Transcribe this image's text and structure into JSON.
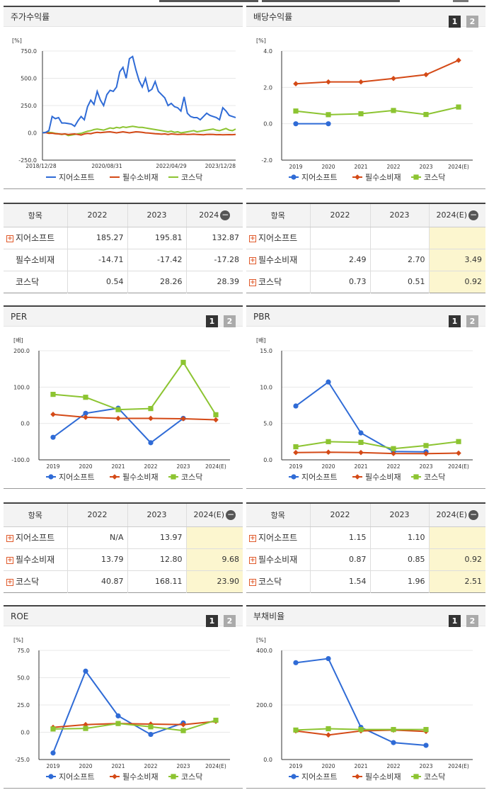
{
  "colors": {
    "s1": "#2f6bd6",
    "s2": "#d44a17",
    "s3": "#8cc431",
    "grid": "#e8e8e8",
    "highlight": "#fcf6cf"
  },
  "series_names": [
    "지어소프트",
    "필수소비재",
    "코스닥"
  ],
  "pager": {
    "one": "1",
    "two": "2"
  },
  "icons": {
    "expand": "plus-icon",
    "collapse": "minus-icon"
  },
  "charts": {
    "stock": {
      "title": "주가수익률",
      "unit": "[%]",
      "chart_data": {
        "type": "line",
        "yticks": [
          "750.0",
          "500.0",
          "250.0",
          "0.0",
          "-250.0"
        ],
        "ylim": [
          -250,
          750
        ],
        "xticks": [
          "2018/12/28",
          "2020/08/31",
          "2022/04/29",
          "2023/12/28"
        ],
        "xlim": [
          0,
          60
        ],
        "xtick_positions": [
          0,
          20,
          40,
          60
        ],
        "series": [
          {
            "name": "지어소프트",
            "values": [
              0,
              5,
              20,
              150,
              130,
              140,
              90,
              90,
              85,
              80,
              60,
              110,
              150,
              120,
              240,
              300,
              260,
              380,
              300,
              250,
              350,
              390,
              380,
              420,
              560,
              600,
              500,
              680,
              700,
              580,
              480,
              420,
              500,
              380,
              400,
              470,
              380,
              350,
              320,
              250,
              270,
              240,
              230,
              200,
              330,
              180,
              150,
              140,
              140,
              120,
              150,
              180,
              160,
              150,
              140,
              120,
              230,
              200,
              160,
              150,
              140
            ]
          },
          {
            "name": "필수소비재",
            "values": [
              0,
              2,
              -5,
              -3,
              -8,
              -10,
              -12,
              -10,
              -15,
              -12,
              -10,
              -15,
              -20,
              -10,
              -5,
              -8,
              0,
              5,
              2,
              5,
              8,
              10,
              5,
              0,
              5,
              10,
              5,
              0,
              5,
              10,
              8,
              5,
              0,
              -2,
              -5,
              -8,
              -10,
              -12,
              -10,
              -15,
              -10,
              -12,
              -15,
              -14,
              -12,
              -15,
              -14,
              -12,
              -15,
              -16,
              -18,
              -15,
              -14,
              -15,
              -17,
              -16,
              -18,
              -17,
              -16,
              -17,
              -15
            ]
          },
          {
            "name": "코스닥",
            "values": [
              0,
              3,
              5,
              2,
              -5,
              -10,
              -15,
              -10,
              -25,
              -20,
              -15,
              -10,
              -5,
              5,
              15,
              20,
              30,
              35,
              30,
              25,
              35,
              45,
              40,
              50,
              45,
              55,
              50,
              55,
              60,
              55,
              50,
              50,
              45,
              40,
              35,
              30,
              25,
              20,
              15,
              10,
              15,
              5,
              10,
              0,
              5,
              10,
              15,
              20,
              10,
              15,
              20,
              25,
              30,
              35,
              25,
              20,
              30,
              40,
              25,
              20,
              35
            ]
          }
        ]
      }
    },
    "dividend": {
      "title": "배당수익률",
      "unit": "[%]",
      "chart_data": {
        "type": "line",
        "categories": [
          "2019",
          "2020",
          "2021",
          "2022",
          "2023",
          "2024(E)"
        ],
        "yticks": [
          "4.0",
          "2.0",
          "0.0",
          "-2.0"
        ],
        "ylim": [
          -2,
          4
        ],
        "series": [
          {
            "name": "지어소프트",
            "values": [
              0.0,
              0.0,
              null,
              null,
              null,
              null
            ]
          },
          {
            "name": "필수소비재",
            "values": [
              2.2,
              2.3,
              2.3,
              2.49,
              2.7,
              3.49
            ]
          },
          {
            "name": "코스닥",
            "values": [
              0.7,
              0.5,
              0.55,
              0.73,
              0.51,
              0.92
            ]
          }
        ]
      }
    },
    "per": {
      "title": "PER",
      "unit": "[배]",
      "chart_data": {
        "type": "line",
        "categories": [
          "2019",
          "2020",
          "2021",
          "2022",
          "2023",
          "2024(E)"
        ],
        "yticks": [
          "200.0",
          "100.0",
          "0.0",
          "-100.0"
        ],
        "ylim": [
          -100,
          200
        ],
        "series": [
          {
            "name": "지어소프트",
            "values": [
              -38,
              28,
              42,
              -53,
              14,
              null
            ]
          },
          {
            "name": "필수소비재",
            "values": [
              25,
              17,
              14,
              14,
              13,
              10
            ]
          },
          {
            "name": "코스닥",
            "values": [
              80,
              72,
              38,
              41,
              168,
              24
            ]
          }
        ]
      }
    },
    "pbr": {
      "title": "PBR",
      "unit": "[배]",
      "chart_data": {
        "type": "line",
        "categories": [
          "2019",
          "2020",
          "2021",
          "2022",
          "2023",
          "2024(E)"
        ],
        "yticks": [
          "15.0",
          "10.0",
          "5.0",
          "0.0"
        ],
        "ylim": [
          0,
          15
        ],
        "series": [
          {
            "name": "지어소프트",
            "values": [
              7.4,
              10.7,
              3.7,
              1.15,
              1.1,
              null
            ]
          },
          {
            "name": "필수소비재",
            "values": [
              1.0,
              1.05,
              1.0,
              0.87,
              0.85,
              0.92
            ]
          },
          {
            "name": "코스닥",
            "values": [
              1.8,
              2.5,
              2.4,
              1.54,
              1.96,
              2.51
            ]
          }
        ]
      }
    },
    "roe": {
      "title": "ROE",
      "unit": "[%]",
      "chart_data": {
        "type": "line",
        "categories": [
          "2019",
          "2020",
          "2021",
          "2022",
          "2023",
          "2024(E)"
        ],
        "yticks": [
          "75.0",
          "50.0",
          "25.0",
          "0.0",
          "-25.0"
        ],
        "ylim": [
          -25,
          75
        ],
        "series": [
          {
            "name": "지어소프트",
            "values": [
              -19,
              56,
              15,
              -2,
              8.5,
              null
            ]
          },
          {
            "name": "필수소비재",
            "values": [
              4.5,
              7,
              8,
              7.5,
              7,
              10
            ]
          },
          {
            "name": "코스닥",
            "values": [
              3,
              3.5,
              8,
              5,
              1.5,
              11
            ]
          }
        ]
      }
    },
    "debt": {
      "title": "부채비율",
      "unit": "[%]",
      "chart_data": {
        "type": "line",
        "categories": [
          "2019",
          "2020",
          "2021",
          "2022",
          "2023",
          "2024(E)"
        ],
        "yticks": [
          "400.0",
          "200.0",
          "0.0"
        ],
        "ylim": [
          0,
          400
        ],
        "series": [
          {
            "name": "지어소프트",
            "values": [
              355,
              370,
              118,
              62,
              52,
              null
            ]
          },
          {
            "name": "필수소비재",
            "values": [
              105,
              90,
              105,
              108,
              103,
              null
            ]
          },
          {
            "name": "코스닥",
            "values": [
              108,
              113,
              110,
              110,
              110,
              null
            ]
          }
        ]
      }
    }
  },
  "tables": {
    "stock": {
      "headers": [
        "항목",
        "2022",
        "2023",
        "2024"
      ],
      "rows": [
        {
          "label": "지어소프트",
          "plus": true,
          "v": [
            "185.27",
            "195.81",
            "132.87"
          ]
        },
        {
          "label": "필수소비재",
          "plus": false,
          "v": [
            "-14.71",
            "-17.42",
            "-17.28"
          ]
        },
        {
          "label": "코스닥",
          "plus": false,
          "v": [
            "0.54",
            "28.26",
            "28.39"
          ]
        }
      ]
    },
    "dividend": {
      "headers": [
        "항목",
        "2022",
        "2023",
        "2024(E)"
      ],
      "rows": [
        {
          "label": "지어소프트",
          "plus": true,
          "v": [
            "",
            "",
            ""
          ]
        },
        {
          "label": "필수소비재",
          "plus": true,
          "v": [
            "2.49",
            "2.70",
            "3.49"
          ]
        },
        {
          "label": "코스닥",
          "plus": true,
          "v": [
            "0.73",
            "0.51",
            "0.92"
          ]
        }
      ]
    },
    "per": {
      "headers": [
        "항목",
        "2022",
        "2023",
        "2024(E)"
      ],
      "rows": [
        {
          "label": "지어소프트",
          "plus": true,
          "v": [
            "N/A",
            "13.97",
            ""
          ]
        },
        {
          "label": "필수소비재",
          "plus": true,
          "v": [
            "13.79",
            "12.80",
            "9.68"
          ]
        },
        {
          "label": "코스닥",
          "plus": true,
          "v": [
            "40.87",
            "168.11",
            "23.90"
          ]
        }
      ]
    },
    "pbr": {
      "headers": [
        "항목",
        "2022",
        "2023",
        "2024(E)"
      ],
      "rows": [
        {
          "label": "지어소프트",
          "plus": true,
          "v": [
            "1.15",
            "1.10",
            ""
          ]
        },
        {
          "label": "필수소비재",
          "plus": true,
          "v": [
            "0.87",
            "0.85",
            "0.92"
          ]
        },
        {
          "label": "코스닥",
          "plus": true,
          "v": [
            "1.54",
            "1.96",
            "2.51"
          ]
        }
      ]
    }
  }
}
